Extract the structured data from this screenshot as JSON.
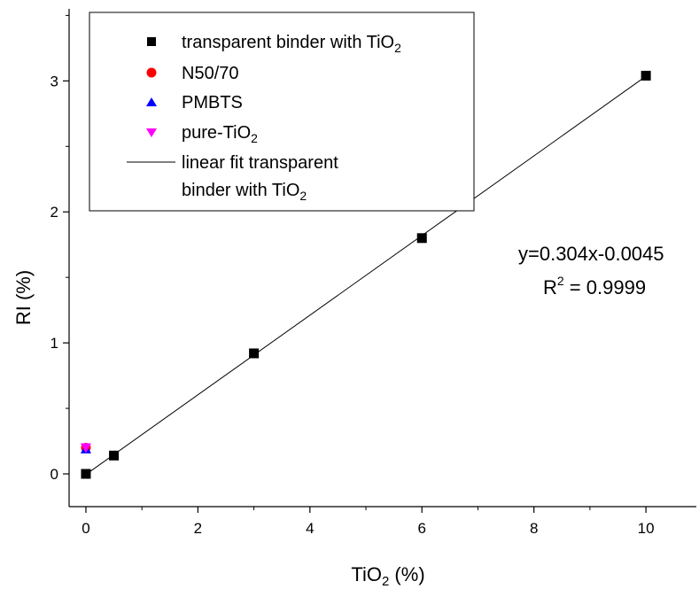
{
  "chart_data": {
    "type": "scatter",
    "xlabel": {
      "main": "TiO",
      "sub": "2",
      "suffix": " (%)"
    },
    "ylabel": "RI (%)",
    "xlim": [
      -0.3,
      10.9
    ],
    "ylim": [
      -0.25,
      3.55
    ],
    "xticks": [
      0,
      2,
      4,
      6,
      8,
      10
    ],
    "yticks": [
      0,
      1,
      2,
      3
    ],
    "xtick_labels": [
      "0",
      "2",
      "4",
      "6",
      "8",
      "10"
    ],
    "ytick_labels": [
      "0",
      "1",
      "2",
      "3"
    ],
    "series": [
      {
        "name": "transparent binder with TiO2",
        "label_main": "transparent binder with TiO",
        "label_sub": "2",
        "marker": "square",
        "color": "#000000",
        "points": [
          [
            0,
            0
          ],
          [
            0.5,
            0.14
          ],
          [
            3,
            0.92
          ],
          [
            6,
            1.8
          ],
          [
            10,
            3.04
          ]
        ]
      },
      {
        "name": "N50/70",
        "label_main": "N50/70",
        "label_sub": "",
        "marker": "circle",
        "color": "#ff0000",
        "points": [
          [
            0,
            0.2
          ]
        ]
      },
      {
        "name": "PMBTS",
        "label_main": "PMBTS",
        "label_sub": "",
        "marker": "triangle-up",
        "color": "#0000ff",
        "points": [
          [
            0,
            0.19
          ]
        ]
      },
      {
        "name": "pure-TiO2",
        "label_main": "pure-TiO",
        "label_sub": "2",
        "marker": "triangle-down",
        "color": "#ff00ff",
        "points": [
          [
            0,
            0.2
          ]
        ]
      }
    ],
    "fit": {
      "name": "linear fit transparent binder with TiO2",
      "label_line1": "linear fit transparent",
      "label_line2_main": "binder with TiO",
      "label_line2_sub": "2",
      "slope": 0.304,
      "intercept": -0.0045,
      "x_range": [
        0,
        10
      ],
      "color": "#000000"
    },
    "annotations": {
      "equation": "y=0.304x-0.0045",
      "r2_main": "R",
      "r2_sup": "2",
      "r2_rest": " = 0.9999"
    },
    "legend_position": "top-left",
    "grid": false
  }
}
